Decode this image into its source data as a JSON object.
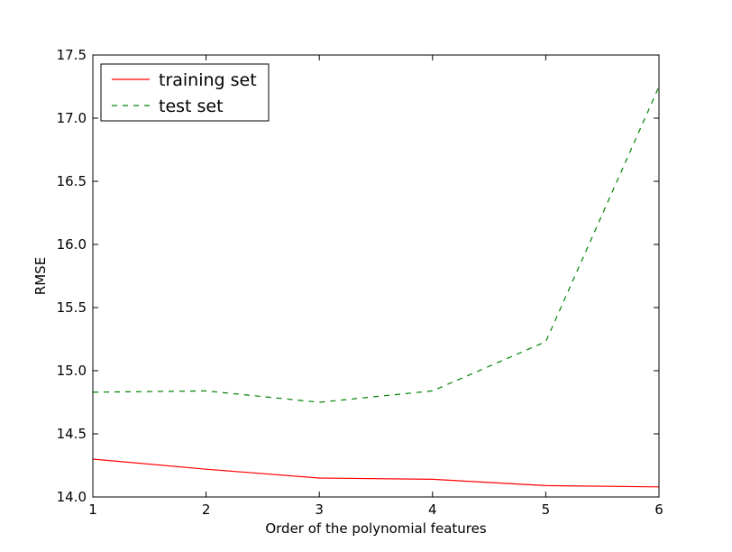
{
  "chart_data": {
    "type": "line",
    "x": [
      1,
      2,
      3,
      4,
      5,
      6
    ],
    "series": [
      {
        "name": "training set",
        "values": [
          14.3,
          14.22,
          14.15,
          14.14,
          14.09,
          14.08
        ],
        "color": "#ff0000",
        "style": "solid"
      },
      {
        "name": "test set",
        "values": [
          14.83,
          14.84,
          14.75,
          14.84,
          15.23,
          17.25
        ],
        "color": "#008000",
        "style": "dashed"
      }
    ],
    "title": "",
    "xlabel": "Order of the polynomial features",
    "ylabel": "RMSE",
    "xlim": [
      1,
      6
    ],
    "ylim": [
      14.0,
      17.5
    ],
    "xticks": [
      "1",
      "2",
      "3",
      "4",
      "5",
      "6"
    ],
    "yticks": [
      "14.0",
      "14.5",
      "15.0",
      "15.5",
      "16.0",
      "16.5",
      "17.0",
      "17.5"
    ],
    "grid": false,
    "legend_position": "top-left"
  }
}
